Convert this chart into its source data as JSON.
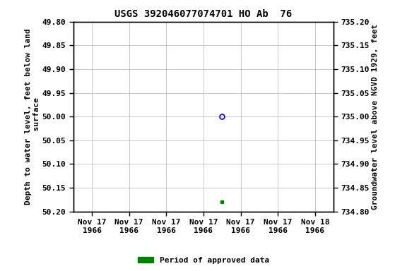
{
  "title": "USGS 392046077074701 HO Ab  76",
  "ylabel_left": "Depth to water level, feet below land\n surface",
  "ylabel_right": "Groundwater level above NGVD 1929, feet",
  "ylim_left_top": 49.8,
  "ylim_left_bottom": 50.2,
  "ylim_right_top": 735.2,
  "ylim_right_bottom": 734.8,
  "yticks_left": [
    49.8,
    49.85,
    49.9,
    49.95,
    50.0,
    50.05,
    50.1,
    50.15,
    50.2
  ],
  "yticks_right": [
    735.2,
    735.15,
    735.1,
    735.05,
    735.0,
    734.95,
    734.9,
    734.85,
    734.8
  ],
  "ytick_labels_right": [
    "735.20",
    "735.15",
    "735.10",
    "735.05",
    "735.00",
    "734.95",
    "734.90",
    "734.85",
    "734.80"
  ],
  "point_open_x": 3.5,
  "point_open_y": 50.0,
  "point_filled_x": 3.5,
  "point_filled_y": 50.18,
  "open_color": "#0000cc",
  "filled_color": "#008000",
  "background_color": "#ffffff",
  "grid_color": "#b0b0b0",
  "title_fontsize": 10,
  "axis_fontsize": 8,
  "tick_fontsize": 8,
  "legend_label": "Period of approved data",
  "legend_color": "#008000",
  "xtick_labels": [
    "Nov 17\n1966",
    "Nov 17\n1966",
    "Nov 17\n1966",
    "Nov 17\n1966",
    "Nov 17\n1966",
    "Nov 17\n1966",
    "Nov 18\n1966"
  ],
  "xtick_positions": [
    0.0,
    1.0,
    2.0,
    3.0,
    4.0,
    5.0,
    6.0
  ],
  "xlim": [
    -0.5,
    6.5
  ]
}
